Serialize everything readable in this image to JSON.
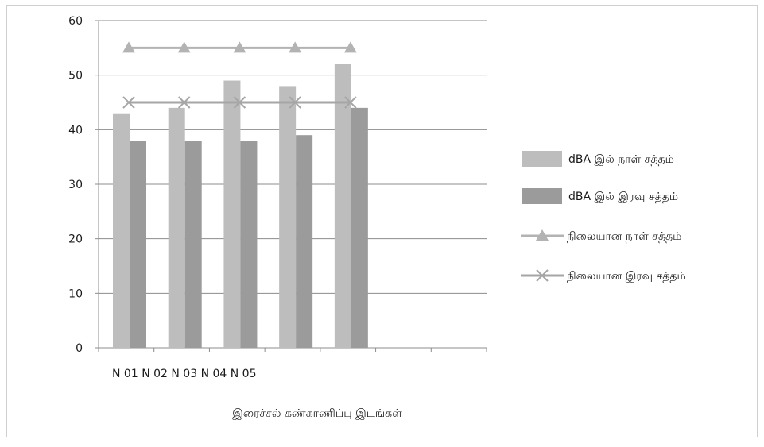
{
  "chart_data": {
    "type": "bar",
    "title": "",
    "xlabel": "இரைச்சல் கண்காணிப்பு இடங்கள்",
    "ylabel": "",
    "ylim": [
      0,
      60
    ],
    "yticks": [
      "0",
      "10",
      "20",
      "30",
      "40",
      "50",
      "60"
    ],
    "category_label_text": "N 01 N 02 N 03 N 04 N 05",
    "categories": [
      "N 01",
      "N 02",
      "N 03",
      "N 04",
      "N 05"
    ],
    "grid": true,
    "legend_position": "right",
    "series": [
      {
        "name": "dBA இல் நாள் சத்தம்",
        "kind": "bar",
        "color": "#bdbdbd",
        "values": [
          43,
          44,
          49,
          48,
          52
        ]
      },
      {
        "name": "dBA இல் இரவு சத்தம்",
        "kind": "bar",
        "color": "#9b9b9b",
        "values": [
          38,
          38,
          38,
          39,
          44
        ]
      },
      {
        "name": "நிலையான நாள் சத்தம்",
        "kind": "line",
        "marker": "triangle",
        "color": "#b3b3b3",
        "values": [
          55,
          55,
          55,
          55,
          55
        ]
      },
      {
        "name": "நிலையான இரவு சத்தம்",
        "kind": "line",
        "marker": "x",
        "color": "#a6a6a6",
        "values": [
          45,
          45,
          45,
          45,
          45
        ]
      }
    ]
  }
}
